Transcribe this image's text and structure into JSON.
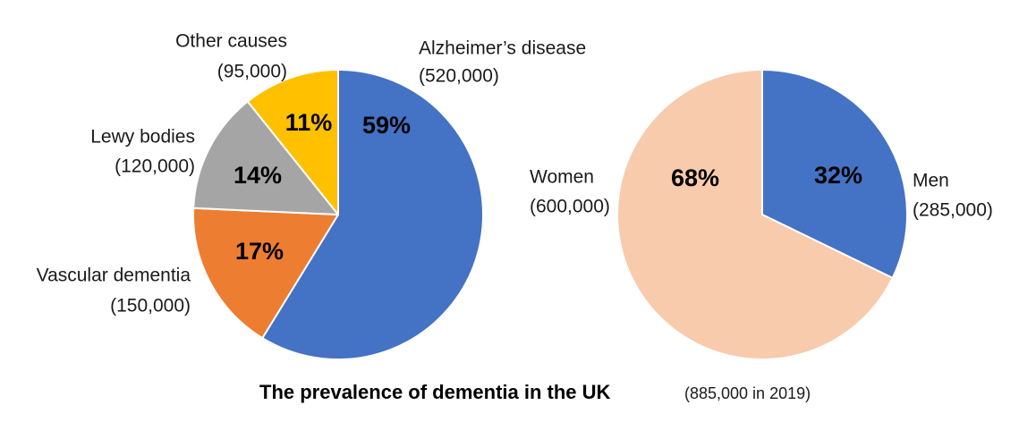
{
  "chart_data": [
    {
      "type": "pie",
      "title": "",
      "series": [
        {
          "values": [
            520000,
            150000,
            120000,
            95000
          ],
          "labels": [
            "Alzheimer’s disease",
            "Vascular dementia",
            "Lewy bodies",
            "Other causes"
          ],
          "value_labels": [
            "(520,000)",
            "(150,000)",
            "(120,000)",
            "(95,000)"
          ],
          "percent_labels": [
            "59%",
            "17%",
            "14%",
            "11%"
          ],
          "colors": [
            "#4472C4",
            "#ED7D31",
            "#A5A5A5",
            "#FFC000"
          ]
        }
      ],
      "start_angle_deg": 0,
      "direction": "clockwise",
      "legend": "none"
    },
    {
      "type": "pie",
      "title": "",
      "series": [
        {
          "values": [
            285000,
            600000
          ],
          "labels": [
            "Men",
            "Women"
          ],
          "value_labels": [
            "(285,000)",
            "(600,000)"
          ],
          "percent_labels": [
            "32%",
            "68%"
          ],
          "colors": [
            "#4472C4",
            "#F8CBAD"
          ]
        }
      ],
      "start_angle_deg": 0,
      "direction": "clockwise",
      "legend": "none"
    }
  ],
  "footer": {
    "title": "The prevalence of dementia in the UK",
    "subtitle": "(885,000 in 2019)"
  }
}
